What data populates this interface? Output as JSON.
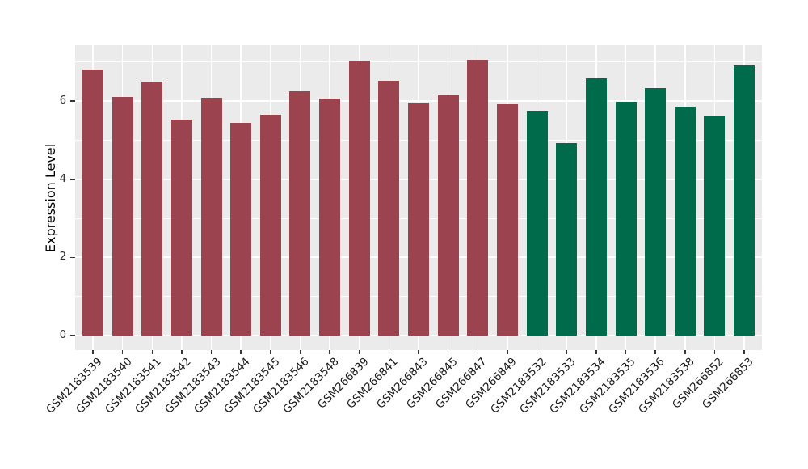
{
  "chart_data": {
    "type": "bar",
    "title": "",
    "xlabel": "",
    "ylabel": "Expression Level",
    "categories": [
      "GSM2183539",
      "GSM2183540",
      "GSM2183541",
      "GSM2183542",
      "GSM2183543",
      "GSM2183544",
      "GSM2183545",
      "GSM2183546",
      "GSM2183548",
      "GSM266839",
      "GSM266841",
      "GSM266843",
      "GSM266845",
      "GSM266847",
      "GSM266849",
      "GSM2183532",
      "GSM2183533",
      "GSM2183534",
      "GSM2183535",
      "GSM2183536",
      "GSM2183538",
      "GSM266852",
      "GSM266853"
    ],
    "values": [
      6.81,
      6.11,
      6.5,
      5.52,
      6.09,
      5.44,
      5.66,
      6.25,
      6.06,
      7.03,
      6.53,
      5.96,
      6.16,
      7.06,
      5.94,
      5.76,
      4.92,
      6.58,
      5.98,
      6.33,
      5.86,
      5.62,
      6.92
    ],
    "bar_colors": [
      "#9B4450",
      "#9B4450",
      "#9B4450",
      "#9B4450",
      "#9B4450",
      "#9B4450",
      "#9B4450",
      "#9B4450",
      "#9B4450",
      "#9B4450",
      "#9B4450",
      "#9B4450",
      "#9B4450",
      "#9B4450",
      "#9B4450",
      "#006B4A",
      "#006B4A",
      "#006B4A",
      "#006B4A",
      "#006B4A",
      "#006B4A",
      "#006B4A",
      "#006B4A"
    ],
    "yticks": [
      0,
      2,
      4,
      6
    ],
    "ytick_labels": [
      "0",
      "2",
      "4",
      "6"
    ],
    "ylim": [
      0,
      7.4
    ],
    "grid": true,
    "legend": false,
    "panel_bg": "#EBEBEB",
    "grid_color": "#FFFFFF",
    "tick_color": "#333333"
  }
}
